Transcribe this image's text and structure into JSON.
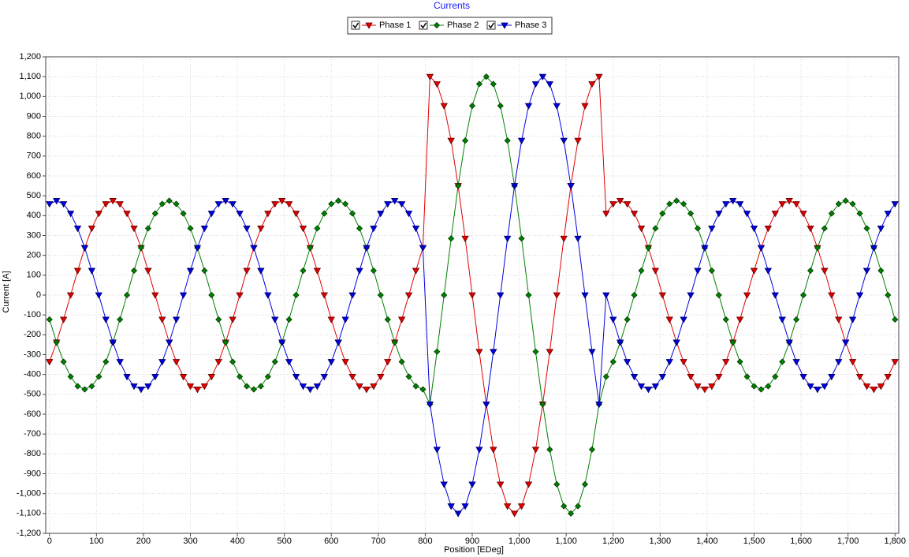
{
  "chart_data": {
    "type": "line",
    "title": "Currents",
    "x_label": "Position [EDeg]",
    "y_label": "Current [A]",
    "grid": true,
    "xlim": [
      -8,
      1808
    ],
    "ylim": [
      -1200,
      1200
    ],
    "xticks": [
      0,
      100,
      200,
      300,
      400,
      500,
      600,
      700,
      800,
      900,
      {
        "value": 1000,
        "label": "1,000"
      },
      {
        "value": 1100,
        "label": "1,100"
      },
      {
        "value": 1200,
        "label": "1,200"
      },
      {
        "value": 1300,
        "label": "1,300"
      },
      {
        "value": 1400,
        "label": "1,400"
      },
      {
        "value": 1500,
        "label": "1,500"
      },
      {
        "value": 1600,
        "label": "1,600"
      },
      {
        "value": 1700,
        "label": "1,700"
      },
      {
        "value": 1800,
        "label": "1,800"
      }
    ],
    "yticks": [
      {
        "value": -1200,
        "label": "-1,200"
      },
      {
        "value": -1100,
        "label": "-1,100"
      },
      {
        "value": -1000,
        "label": "-1,000"
      },
      -900,
      -800,
      -700,
      -600,
      -500,
      -400,
      -300,
      -200,
      -100,
      0,
      100,
      200,
      300,
      400,
      500,
      600,
      700,
      800,
      900,
      {
        "value": 1000,
        "label": "1,000"
      },
      {
        "value": 1100,
        "label": "1,100"
      },
      {
        "value": 1200,
        "label": "1,200"
      }
    ],
    "x": [
      0,
      15,
      30,
      45,
      60,
      75,
      90,
      105,
      120,
      135,
      150,
      165,
      180,
      195,
      210,
      225,
      240,
      255,
      270,
      285,
      300,
      315,
      330,
      345,
      360,
      375,
      390,
      405,
      420,
      435,
      450,
      465,
      480,
      495,
      510,
      525,
      540,
      555,
      570,
      585,
      600,
      615,
      630,
      645,
      660,
      675,
      690,
      705,
      720,
      735,
      750,
      765,
      780,
      795,
      810,
      825,
      840,
      855,
      870,
      885,
      900,
      915,
      930,
      945,
      960,
      975,
      990,
      1005,
      1020,
      1035,
      1050,
      1065,
      1080,
      1095,
      1110,
      1125,
      1140,
      1155,
      1170,
      1185,
      1200,
      1215,
      1230,
      1245,
      1260,
      1275,
      1290,
      1305,
      1320,
      1335,
      1350,
      1365,
      1380,
      1395,
      1410,
      1425,
      1440,
      1455,
      1470,
      1485,
      1500,
      1515,
      1530,
      1545,
      1560,
      1575,
      1590,
      1605,
      1620,
      1635,
      1650,
      1665,
      1680,
      1695,
      1710,
      1725,
      1740,
      1755,
      1770,
      1785,
      1800
    ],
    "series": [
      {
        "name": "Phase 1",
        "color": "#e00000",
        "marker": "triangle-down",
        "values": [
          -336,
          -238,
          -123,
          0,
          123,
          238,
          336,
          411,
          459,
          475,
          459,
          411,
          336,
          238,
          123,
          0,
          -123,
          -238,
          -336,
          -411,
          -459,
          -475,
          -459,
          -411,
          -336,
          -238,
          -123,
          0,
          123,
          238,
          336,
          411,
          459,
          475,
          459,
          411,
          336,
          238,
          123,
          0,
          -123,
          -238,
          -336,
          -411,
          -459,
          -475,
          -459,
          -411,
          -336,
          -238,
          -123,
          0,
          123,
          238,
          1100,
          1063,
          953,
          778,
          550,
          285,
          0,
          -285,
          -550,
          -778,
          -953,
          -1063,
          -1100,
          -1063,
          -953,
          -778,
          -550,
          -285,
          0,
          285,
          550,
          778,
          953,
          1063,
          1100,
          411,
          459,
          475,
          459,
          411,
          336,
          238,
          123,
          0,
          -123,
          -238,
          -336,
          -411,
          -459,
          -475,
          -459,
          -411,
          -336,
          -238,
          -123,
          0,
          123,
          238,
          336,
          411,
          459,
          475,
          459,
          411,
          336,
          238,
          123,
          0,
          -123,
          -238,
          -336,
          -411,
          -459,
          -475,
          -459,
          -411,
          -336
        ]
      },
      {
        "name": "Phase 2",
        "color": "#008000",
        "marker": "diamond",
        "values": [
          -123,
          -238,
          -336,
          -411,
          -459,
          -475,
          -459,
          -411,
          -336,
          -238,
          -123,
          0,
          123,
          238,
          336,
          411,
          459,
          475,
          459,
          411,
          336,
          238,
          123,
          0,
          -123,
          -238,
          -336,
          -411,
          -459,
          -475,
          -459,
          -411,
          -336,
          -238,
          -123,
          0,
          123,
          238,
          336,
          411,
          459,
          475,
          459,
          411,
          336,
          238,
          123,
          0,
          -123,
          -238,
          -336,
          -411,
          -459,
          -475,
          -550,
          -285,
          0,
          285,
          550,
          778,
          953,
          1063,
          1100,
          1063,
          953,
          778,
          550,
          285,
          0,
          -285,
          -550,
          -778,
          -953,
          -1063,
          -1100,
          -1063,
          -953,
          -778,
          -550,
          -411,
          -336,
          -238,
          -123,
          0,
          123,
          238,
          336,
          411,
          459,
          475,
          459,
          411,
          336,
          238,
          123,
          0,
          -123,
          -238,
          -336,
          -411,
          -459,
          -475,
          -459,
          -411,
          -336,
          -238,
          -123,
          0,
          123,
          238,
          336,
          411,
          459,
          475,
          459,
          411,
          336,
          238,
          123,
          0,
          -123
        ]
      },
      {
        "name": "Phase 3",
        "color": "#0000e0",
        "marker": "triangle-down",
        "values": [
          459,
          475,
          459,
          411,
          336,
          238,
          123,
          0,
          -123,
          -238,
          -336,
          -411,
          -459,
          -475,
          -459,
          -411,
          -336,
          -238,
          -123,
          0,
          123,
          238,
          336,
          411,
          459,
          475,
          459,
          411,
          336,
          238,
          123,
          0,
          -123,
          -238,
          -336,
          -411,
          -459,
          -475,
          -459,
          -411,
          -336,
          -238,
          -123,
          0,
          123,
          238,
          336,
          411,
          459,
          475,
          459,
          411,
          336,
          238,
          -550,
          -778,
          -953,
          -1063,
          -1100,
          -1063,
          -953,
          -778,
          -550,
          -285,
          0,
          285,
          550,
          778,
          953,
          1063,
          1100,
          1063,
          953,
          778,
          550,
          285,
          0,
          -285,
          -550,
          0,
          -123,
          -238,
          -336,
          -411,
          -459,
          -475,
          -459,
          -411,
          -336,
          -238,
          -123,
          0,
          123,
          238,
          336,
          411,
          459,
          475,
          459,
          411,
          336,
          238,
          123,
          0,
          -123,
          -238,
          -336,
          -411,
          -459,
          -475,
          -459,
          -411,
          -336,
          -238,
          -123,
          0,
          123,
          238,
          336,
          411,
          459
        ]
      }
    ]
  }
}
